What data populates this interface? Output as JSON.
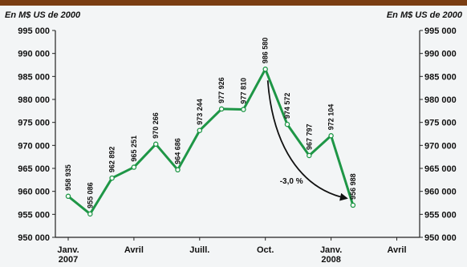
{
  "chart_data": {
    "type": "line",
    "unit_label_left": "En M$ US de 2000",
    "unit_label_right": "En M$ US de 2000",
    "ylim": [
      950000,
      995000
    ],
    "y_ticks": [
      950000,
      955000,
      960000,
      965000,
      970000,
      975000,
      980000,
      985000,
      990000,
      995000
    ],
    "y_tick_labels": [
      "950 000",
      "955 000",
      "960 000",
      "965 000",
      "970 000",
      "975 000",
      "980 000",
      "985 000",
      "990 000",
      "995 000"
    ],
    "x_tick_labels": [
      {
        "line1": "Janv.",
        "line2": "2007",
        "month": 0
      },
      {
        "line1": "Avril",
        "line2": "",
        "month": 3
      },
      {
        "line1": "Juill.",
        "line2": "",
        "month": 6
      },
      {
        "line1": "Oct.",
        "line2": "",
        "month": 9
      },
      {
        "line1": "Janv.",
        "line2": "2008",
        "month": 12
      },
      {
        "line1": "Avril",
        "line2": "",
        "month": 15
      }
    ],
    "series": [
      {
        "points": [
          {
            "month": 0,
            "value": 958935,
            "label": "958 935"
          },
          {
            "month": 1,
            "value": 955086,
            "label": "955 086"
          },
          {
            "month": 2,
            "value": 962892,
            "label": "962 892"
          },
          {
            "month": 3,
            "value": 965251,
            "label": "965 251"
          },
          {
            "month": 4,
            "value": 970266,
            "label": "970 266"
          },
          {
            "month": 5,
            "value": 964686,
            "label": "964 686"
          },
          {
            "month": 6,
            "value": 973244,
            "label": "973 244"
          },
          {
            "month": 7,
            "value": 977926,
            "label": "977 926"
          },
          {
            "month": 8,
            "value": 977810,
            "label": "977 810"
          },
          {
            "month": 9,
            "value": 986580,
            "label": "986 580"
          },
          {
            "month": 10,
            "value": 974572,
            "label": "974 572"
          },
          {
            "month": 11,
            "value": 967797,
            "label": "967 797"
          },
          {
            "month": 12,
            "value": 972104,
            "label": "972 104"
          },
          {
            "month": 13,
            "value": 956988,
            "label": "956 988"
          }
        ]
      }
    ],
    "annotation": {
      "text": "-3,0 %",
      "from_month": 9,
      "to_month": 13
    },
    "colors": {
      "line": "#1e9646",
      "marker_fill": "#ffffff",
      "background": "#f3f5f6",
      "top_bar": "#7a3e12",
      "text": "#111111"
    },
    "grid": false
  }
}
